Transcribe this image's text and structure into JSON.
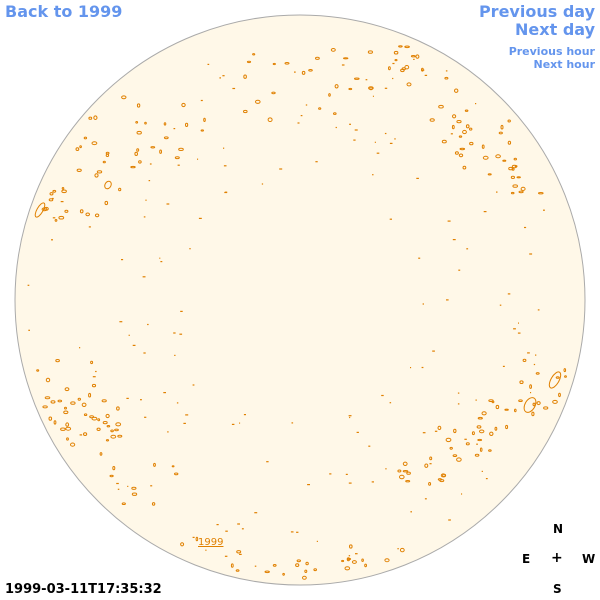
{
  "nav": {
    "back_label": "Back to 1999",
    "prev_day_label": "Previous day",
    "next_day_label": "Next day",
    "prev_hour_label": "Previous hour",
    "next_hour_label": "Next hour"
  },
  "timestamp": "1999-03-11T17:35:32",
  "year_link": "1999",
  "compass": {
    "north": "N",
    "east": "E",
    "center": "+",
    "west": "W",
    "south": "S"
  },
  "colors": {
    "nav": "#6495ED",
    "disk_fill": "#FFF8E8",
    "disk_border": "#AAAAAA",
    "feature": "#E08000"
  }
}
